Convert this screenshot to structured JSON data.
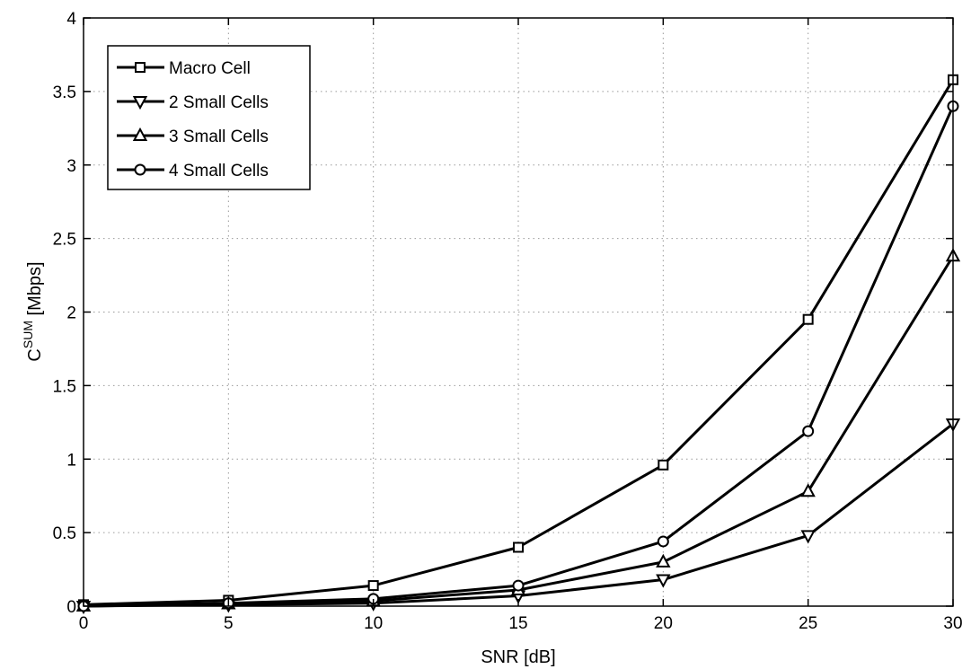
{
  "chart_data": {
    "type": "line",
    "title": "",
    "xlabel": "SNR [dB]",
    "ylabel": {
      "base": "C",
      "superscript": "SUM",
      "suffix": " [Mbps]"
    },
    "xlim": [
      0,
      30
    ],
    "ylim": [
      0,
      4
    ],
    "x_ticks": [
      "0",
      "5",
      "10",
      "15",
      "20",
      "25",
      "30"
    ],
    "y_ticks": [
      "0",
      "0.5",
      "1",
      "1.5",
      "2",
      "2.5",
      "3",
      "3.5",
      "4"
    ],
    "grid": true,
    "legend_position": "top-left",
    "x": [
      0,
      5,
      10,
      15,
      20,
      25,
      30
    ],
    "series": [
      {
        "name": "Macro Cell",
        "marker": "square",
        "values": [
          0.01,
          0.04,
          0.14,
          0.4,
          0.96,
          1.95,
          3.58
        ]
      },
      {
        "name": "2 Small Cells",
        "marker": "triangle-down",
        "values": [
          0.0,
          0.01,
          0.02,
          0.07,
          0.18,
          0.48,
          1.24
        ]
      },
      {
        "name": "3 Small Cells",
        "marker": "triangle-up",
        "values": [
          0.0,
          0.015,
          0.035,
          0.11,
          0.3,
          0.78,
          2.38
        ]
      },
      {
        "name": "4 Small Cells",
        "marker": "circle",
        "values": [
          0.0,
          0.02,
          0.05,
          0.14,
          0.44,
          1.19,
          3.4
        ]
      }
    ]
  }
}
